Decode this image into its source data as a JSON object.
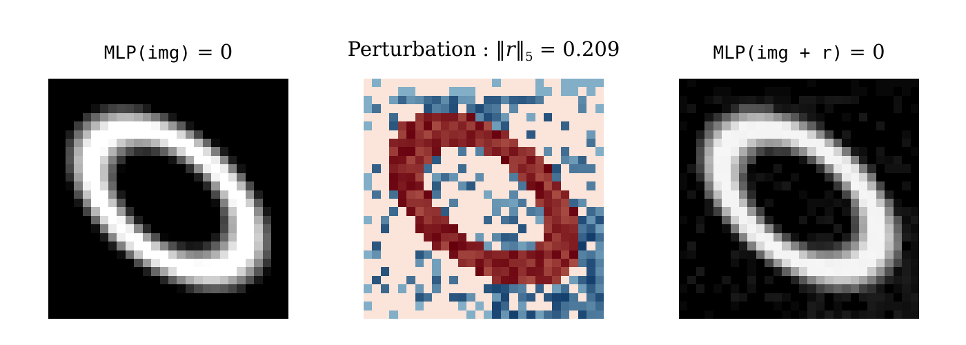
{
  "panels": {
    "left": {
      "title_code": "MLP(img)",
      "title_eq": " = 0"
    },
    "middle": {
      "title_text": "Perturbation : ",
      "norm_open": "‖",
      "norm_var": "r",
      "norm_close": "‖",
      "norm_sub": "5",
      "norm_value": " = 0.209"
    },
    "right": {
      "title_code": "MLP(img + r)",
      "title_eq": " = 0"
    }
  },
  "colors": {
    "background": "#ffffff",
    "perturbation_bg": "#fbe4d9",
    "diverging_positive": "#b2182b",
    "diverging_negative": "#2166ac"
  }
}
